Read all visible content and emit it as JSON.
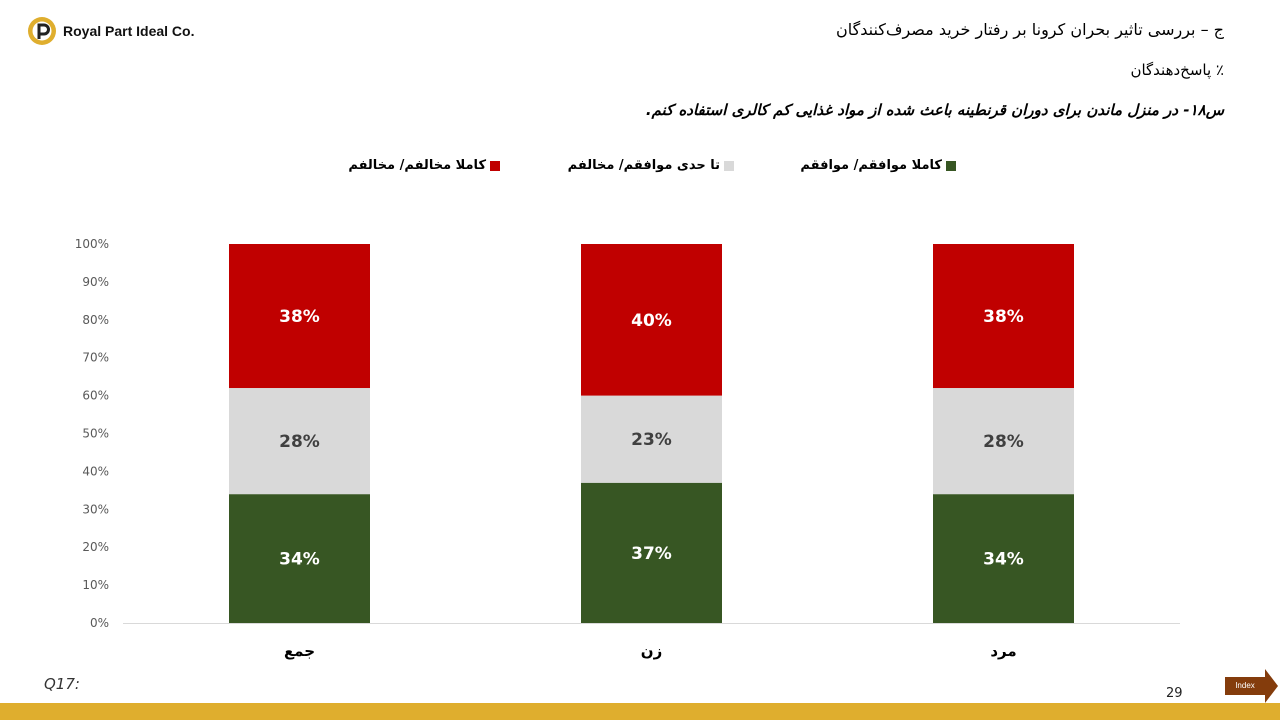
{
  "brand": {
    "name": "Royal Part Ideal Co."
  },
  "header": {
    "title": "ج – بررسی تاثیر بحران کرونا بر رفتار خرید مصرف‌کنندگان",
    "subtitle": "٪ پاسخ‌دهندگان",
    "question": "س۱۸- در منزل ماندن برای دوران قرنطینه باعث شده از مواد غذایی کم کالری استفاده کنم."
  },
  "footer": {
    "question_code": "Q17:",
    "page_number": "29",
    "index_label": "Index"
  },
  "colors": {
    "agree": "#375623",
    "neutral": "#D9D9D9",
    "disagree": "#C00000",
    "gold": "#DFAE2E",
    "index_button": "#843C0C"
  },
  "chart_data": {
    "type": "bar",
    "stacked": true,
    "categories": [
      "جمع",
      "زن",
      "مرد"
    ],
    "series": [
      {
        "name": "کاملا موافقم/ موافقم",
        "color": "#375623",
        "values": [
          34,
          37,
          34
        ],
        "labels": [
          "34%",
          "37%",
          "34%"
        ]
      },
      {
        "name": "تا حدی موافقم/ مخالفم",
        "color": "#D9D9D9",
        "values": [
          28,
          23,
          28
        ],
        "labels": [
          "28%",
          "23%",
          "28%"
        ]
      },
      {
        "name": "کاملا مخالفم/ مخالفم",
        "color": "#C00000",
        "values": [
          38,
          40,
          38
        ],
        "labels": [
          "38%",
          "40%",
          "38%"
        ]
      }
    ],
    "ylim": [
      0,
      100
    ],
    "yticks": [
      "0%",
      "10%",
      "20%",
      "30%",
      "40%",
      "50%",
      "60%",
      "70%",
      "80%",
      "90%",
      "100%"
    ],
    "legend_position": "top",
    "grid": false
  }
}
